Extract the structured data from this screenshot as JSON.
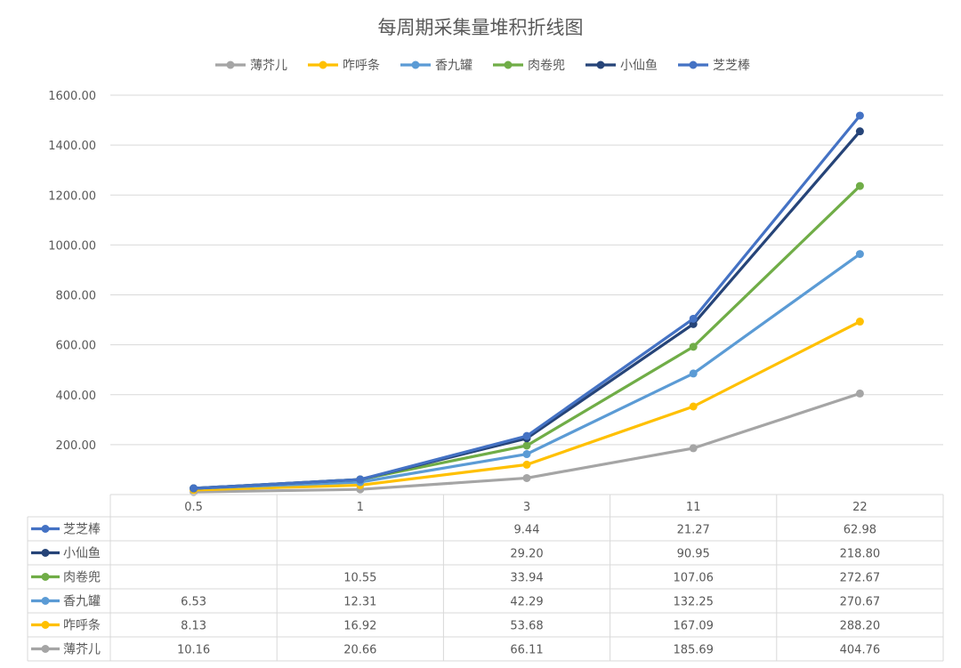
{
  "chart_data": {
    "type": "line",
    "stacked": true,
    "title": "每周期采集量堆积折线图",
    "categories": [
      "0.5",
      "1",
      "3",
      "11",
      "22"
    ],
    "ylim": [
      0,
      1600
    ],
    "yticks": [
      "200.00",
      "400.00",
      "600.00",
      "800.00",
      "1000.00",
      "1200.00",
      "1400.00",
      "1600.00"
    ],
    "legend_position": "top",
    "grid": true,
    "series": [
      {
        "name": "薄芥儿",
        "color": "#a5a5a5",
        "values": [
          10.16,
          20.66,
          66.11,
          185.69,
          404.76
        ],
        "labels": [
          "10.16",
          "20.66",
          "66.11",
          "185.69",
          "404.76"
        ]
      },
      {
        "name": "咋呼条",
        "color": "#ffc000",
        "values": [
          8.13,
          16.92,
          53.68,
          167.09,
          288.2
        ],
        "labels": [
          "8.13",
          "16.92",
          "53.68",
          "167.09",
          "288.20"
        ]
      },
      {
        "name": "香九罐",
        "color": "#5b9bd5",
        "values": [
          6.53,
          12.31,
          42.29,
          132.25,
          270.67
        ],
        "labels": [
          "6.53",
          "12.31",
          "42.29",
          "132.25",
          "270.67"
        ]
      },
      {
        "name": "肉卷兜",
        "color": "#70ad47",
        "values": [
          null,
          10.55,
          33.94,
          107.06,
          272.67
        ],
        "labels": [
          "",
          "10.55",
          "33.94",
          "107.06",
          "272.67"
        ]
      },
      {
        "name": "小仙鱼",
        "color": "#264478",
        "values": [
          null,
          null,
          29.2,
          90.95,
          218.8
        ],
        "labels": [
          "",
          "",
          "29.20",
          "90.95",
          "218.80"
        ]
      },
      {
        "name": "芝芝棒",
        "color": "#4472c4",
        "values": [
          null,
          null,
          9.44,
          21.27,
          62.98
        ],
        "labels": [
          "",
          "",
          "9.44",
          "21.27",
          "62.98"
        ]
      }
    ],
    "legend_order": [
      "薄芥儿",
      "咋呼条",
      "香九罐",
      "肉卷兜",
      "小仙鱼",
      "芝芝棒"
    ],
    "table_row_order": [
      "芝芝棒",
      "小仙鱼",
      "肉卷兜",
      "香九罐",
      "咋呼条",
      "薄芥儿"
    ]
  }
}
